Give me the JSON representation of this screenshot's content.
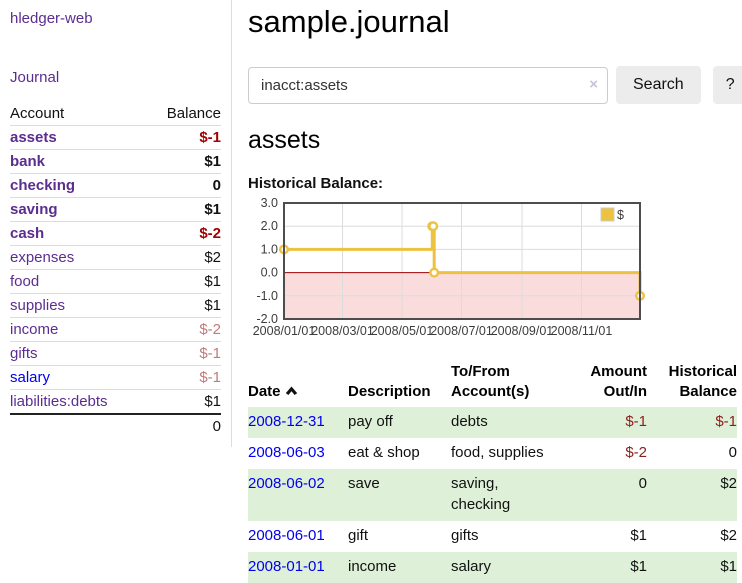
{
  "app": {
    "brand": "hledger-web",
    "nav": {
      "journal": "Journal"
    }
  },
  "sidebar": {
    "columns": {
      "account": "Account",
      "balance": "Balance"
    },
    "accounts": [
      {
        "name": "assets",
        "balance": "$-1",
        "indent": 1,
        "bold": true,
        "balance_style": "sneg",
        "link": "purple"
      },
      {
        "name": "bank",
        "balance": "$1",
        "indent": 2,
        "bold": true,
        "balance_style": "sb",
        "link": "purple"
      },
      {
        "name": "checking",
        "balance": "0",
        "indent": 3,
        "bold": true,
        "balance_style": "sb",
        "link": "purple"
      },
      {
        "name": "saving",
        "balance": "$1",
        "indent": 3,
        "bold": true,
        "balance_style": "sb",
        "link": "purple"
      },
      {
        "name": "cash",
        "balance": "$-2",
        "indent": 2,
        "bold": true,
        "balance_style": "sneg",
        "link": "purple"
      },
      {
        "name": "expenses",
        "balance": "$2",
        "indent": 1,
        "bold": false,
        "balance_style": "plain",
        "link": "purple"
      },
      {
        "name": "food",
        "balance": "$1",
        "indent": 2,
        "bold": false,
        "balance_style": "plain",
        "link": "purple"
      },
      {
        "name": "supplies",
        "balance": "$1",
        "indent": 2,
        "bold": false,
        "balance_style": "plain",
        "link": "purple"
      },
      {
        "name": "income",
        "balance": "$-2",
        "indent": 1,
        "bold": false,
        "balance_style": "fneg",
        "link": "purple"
      },
      {
        "name": "gifts",
        "balance": "$-1",
        "indent": 2,
        "bold": false,
        "balance_style": "fneg",
        "link": "purple"
      },
      {
        "name": "salary",
        "balance": "$-1",
        "indent": 2,
        "bold": false,
        "balance_style": "fneg",
        "link": "blue"
      },
      {
        "name": "liabilities:debts",
        "balance": "$1",
        "indent": 1,
        "bold": false,
        "balance_style": "plain",
        "link": "purple"
      }
    ],
    "total": "0"
  },
  "header": {
    "title": "sample.journal"
  },
  "search": {
    "value": "inacct:assets",
    "clear_icon": "×",
    "button_label": "Search",
    "help_label": "?"
  },
  "account_page": {
    "heading": "assets",
    "chart_label": "Historical Balance:"
  },
  "chart_data": {
    "type": "line",
    "title": "Historical Balance",
    "step": true,
    "series": [
      {
        "name": "$",
        "color": "#edc240",
        "points": [
          {
            "date": "2008-01-01",
            "value": 1
          },
          {
            "date": "2008-06-01",
            "value": 2
          },
          {
            "date": "2008-06-02",
            "value": 2
          },
          {
            "date": "2008-06-03",
            "value": 0
          },
          {
            "date": "2008-12-31",
            "value": -1
          }
        ]
      }
    ],
    "xlim": [
      "2008-01-01",
      "2008-12-31"
    ],
    "ylim": [
      -2,
      3
    ],
    "x_ticks": [
      "2008/01/01",
      "2008/03/01",
      "2008/05/01",
      "2008/07/01",
      "2008/09/01",
      "2008/11/01"
    ],
    "y_ticks": [
      3.0,
      2.0,
      1.0,
      0.0,
      -1.0,
      -2.0
    ],
    "grid": true,
    "negative_region_color": "#fbdcdc",
    "zero_line_color": "#9b0000",
    "legend": {
      "label": "$",
      "position": "top-right"
    }
  },
  "register": {
    "columns": [
      "Date",
      "Description",
      "To/From Account(s)",
      "Amount Out/In",
      "Historical Balance"
    ],
    "sort": {
      "column": "Date",
      "direction": "asc"
    },
    "rows": [
      {
        "date": "2008-12-31",
        "description": "pay off",
        "accounts": "debts",
        "amount": "$-1",
        "amount_neg": true,
        "balance": "$-1",
        "balance_neg": true,
        "highlight": true
      },
      {
        "date": "2008-06-03",
        "description": "eat & shop",
        "accounts": "food, supplies",
        "amount": "$-2",
        "amount_neg": true,
        "balance": "0",
        "balance_neg": false,
        "highlight": false
      },
      {
        "date": "2008-06-02",
        "description": "save",
        "accounts": "saving, checking",
        "amount": "0",
        "amount_neg": false,
        "balance": "$2",
        "balance_neg": false,
        "highlight": true
      },
      {
        "date": "2008-06-01",
        "description": "gift",
        "accounts": "gifts",
        "amount": "$1",
        "amount_neg": false,
        "balance": "$2",
        "balance_neg": false,
        "highlight": false
      },
      {
        "date": "2008-01-01",
        "description": "income",
        "accounts": "salary",
        "amount": "$1",
        "amount_neg": false,
        "balance": "$1",
        "balance_neg": false,
        "highlight": true
      }
    ]
  }
}
